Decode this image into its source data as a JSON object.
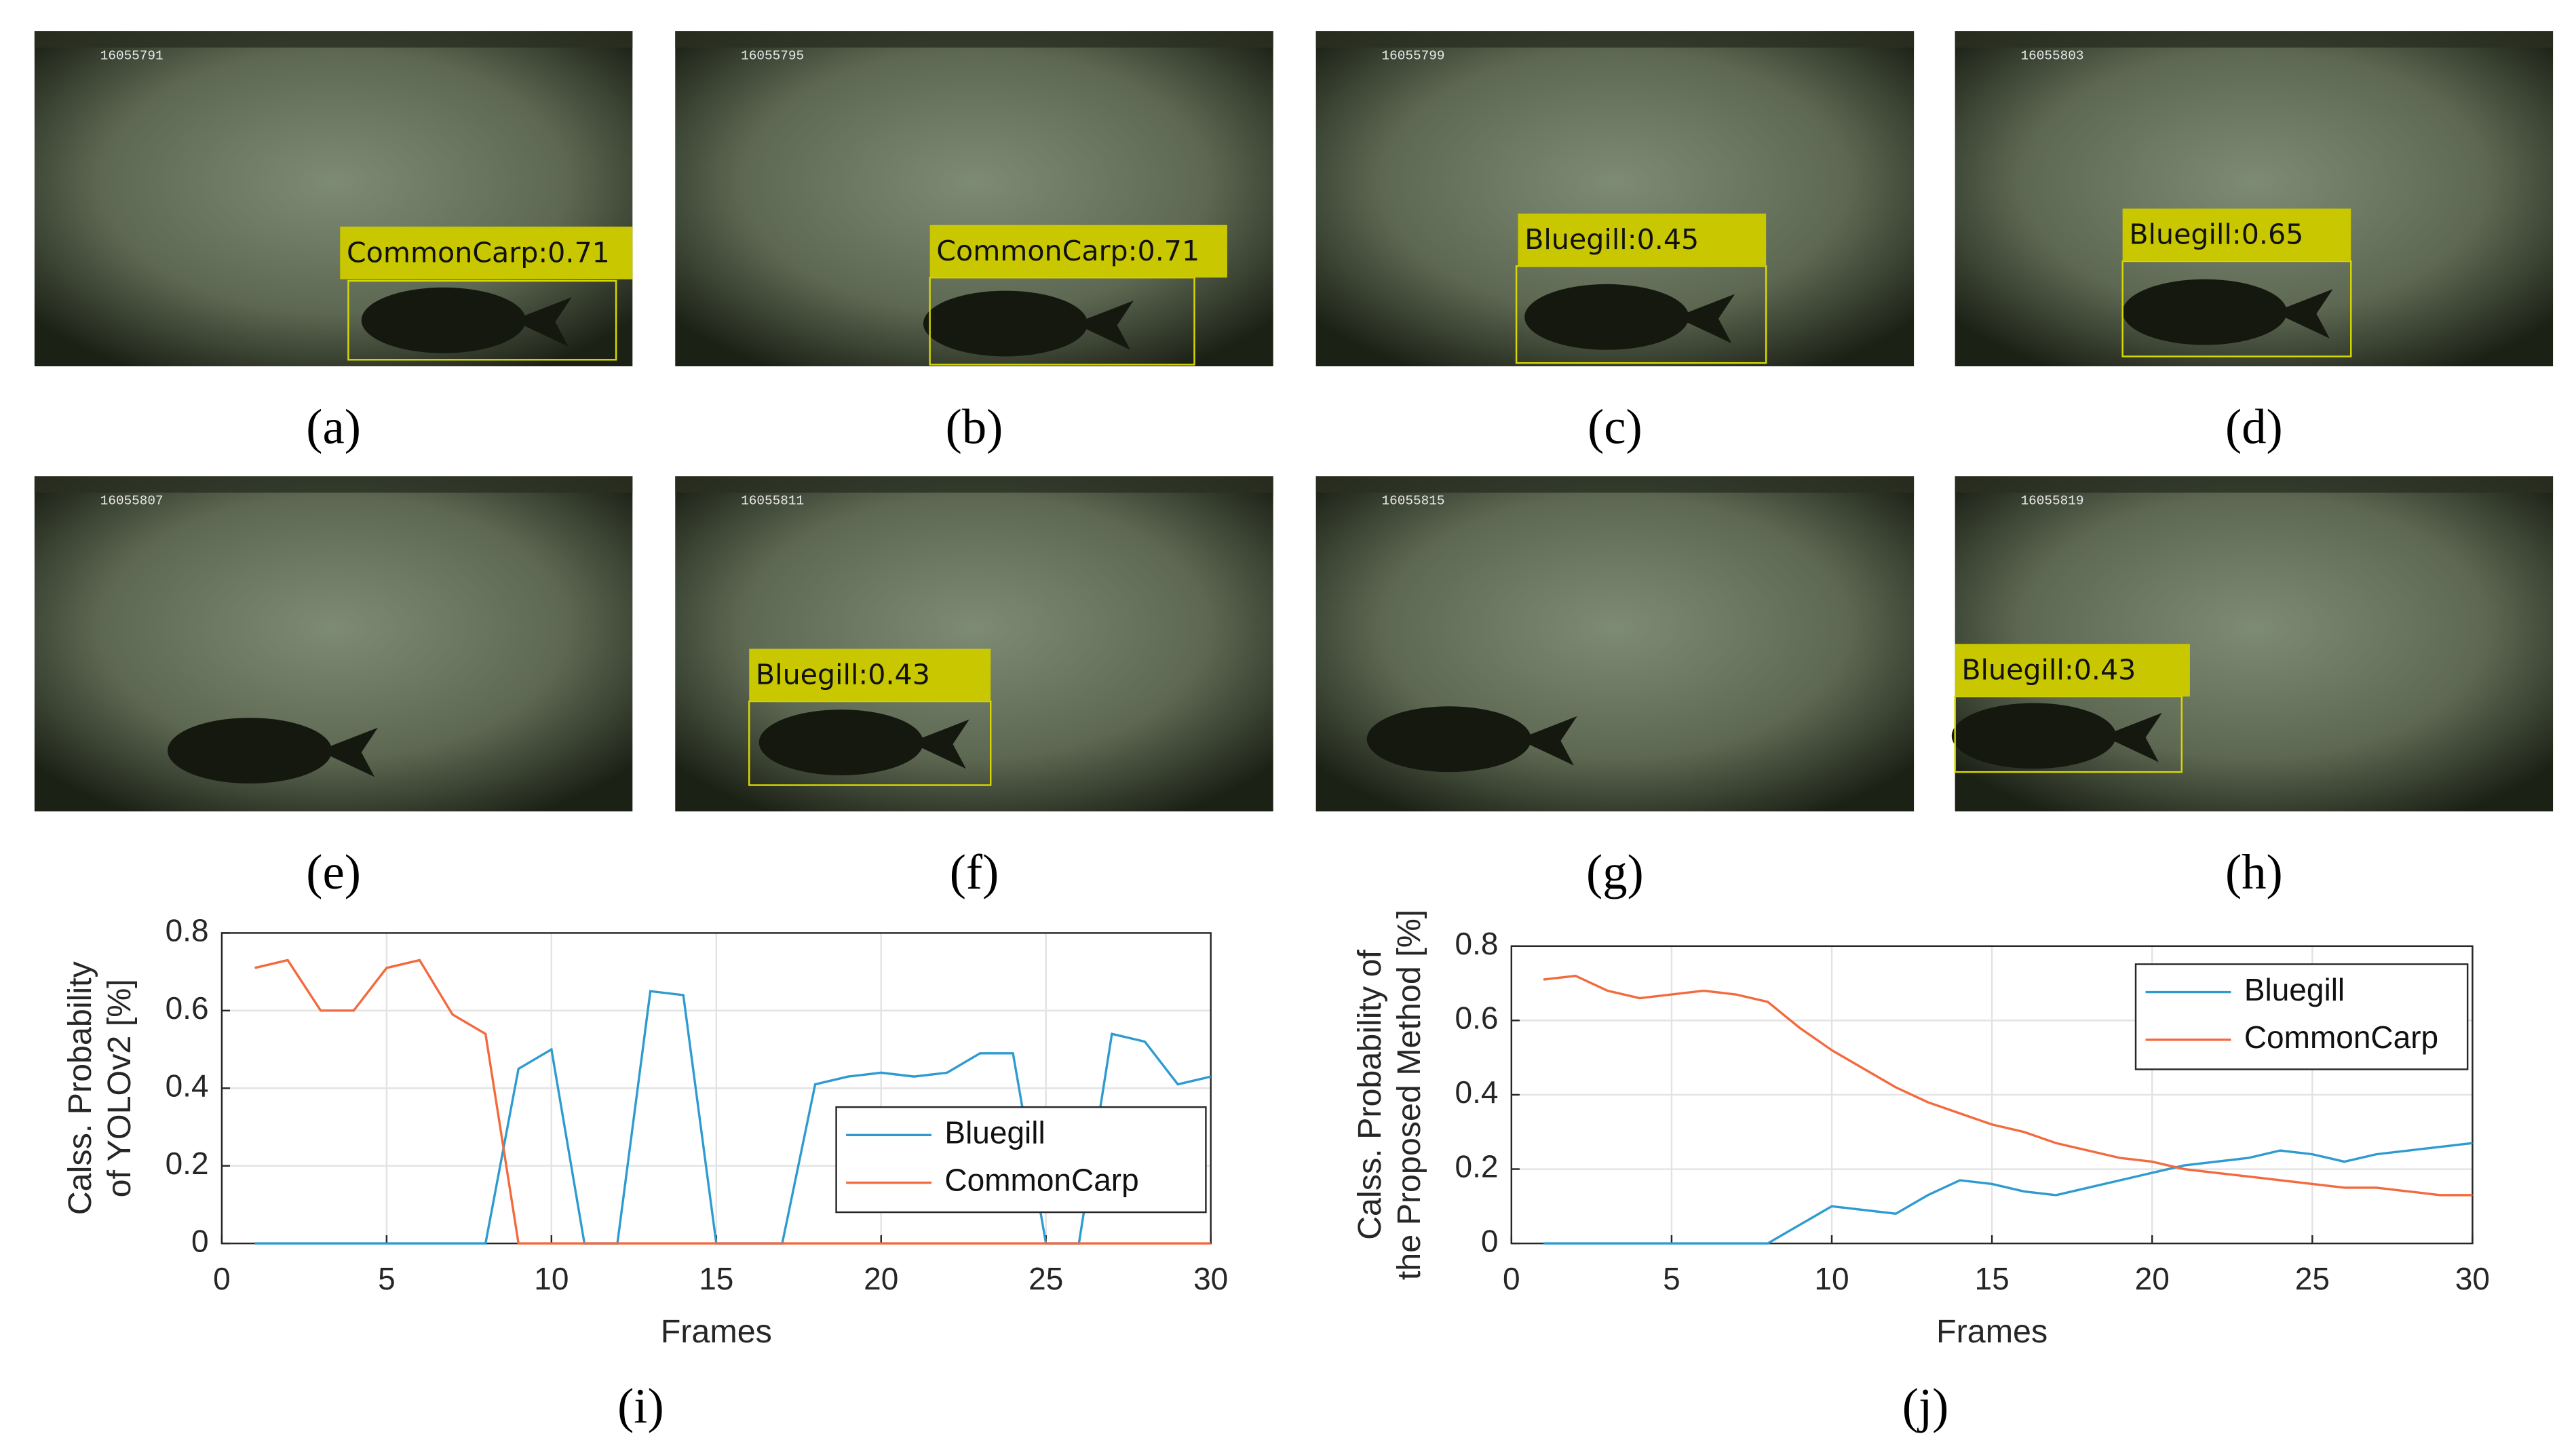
{
  "panels": [
    {
      "frame": "16055791",
      "detection": "CommonCarp:0.71",
      "caption": "(a)"
    },
    {
      "frame": "16055795",
      "detection": "CommonCarp:0.71",
      "caption": "(b)"
    },
    {
      "frame": "16055799",
      "detection": "Bluegill:0.45",
      "caption": "(c)"
    },
    {
      "frame": "16055803",
      "detection": "Bluegill:0.65",
      "caption": "(d)"
    },
    {
      "frame": "16055807",
      "caption": "(e)"
    },
    {
      "frame": "16055811",
      "detection": "Bluegill:0.43",
      "caption": "(f)"
    },
    {
      "frame": "16055815",
      "caption": "(g)"
    },
    {
      "frame": "16055819",
      "detection": "Bluegill:0.43",
      "caption": "(h)"
    }
  ],
  "chart_data": [
    {
      "type": "line",
      "caption": "(i)",
      "ylabel": [
        "Calss. Probability",
        "of YOLOv2 [%]"
      ],
      "xlabel": "Frames",
      "x": [
        1,
        2,
        3,
        4,
        5,
        6,
        7,
        8,
        9,
        10,
        11,
        12,
        13,
        14,
        15,
        16,
        17,
        18,
        19,
        20,
        21,
        22,
        23,
        24,
        25,
        26,
        27,
        28,
        29,
        30
      ],
      "series": [
        {
          "name": "Bluegill",
          "color": "#2e9bd0",
          "values": [
            0,
            0,
            0,
            0,
            0,
            0,
            0,
            0,
            0.45,
            0.5,
            0,
            0,
            0.65,
            0.64,
            0,
            0,
            0,
            0.41,
            0.43,
            0.44,
            0.43,
            0.44,
            0.49,
            0.49,
            0,
            0,
            0.54,
            0.52,
            0.41,
            0.43
          ]
        },
        {
          "name": "CommonCarp",
          "color": "#f26a3d",
          "values": [
            0.71,
            0.73,
            0.6,
            0.6,
            0.71,
            0.73,
            0.59,
            0.54,
            0,
            0,
            0,
            0,
            0,
            0,
            0,
            0,
            0,
            0,
            0,
            0,
            0,
            0,
            0,
            0,
            0,
            0,
            0,
            0,
            0,
            0
          ]
        }
      ],
      "xlim": [
        0,
        30
      ],
      "xticks": [
        0,
        5,
        10,
        15,
        20,
        25,
        30
      ],
      "ylim": [
        0,
        0.8
      ],
      "yticks": [
        0,
        0.2,
        0.4,
        0.6,
        0.8
      ],
      "grid": true,
      "legend": "lower right"
    },
    {
      "type": "line",
      "caption": "(j)",
      "ylabel": [
        "Calss. Probability of",
        "the Proposed Method [%]"
      ],
      "xlabel": "Frames",
      "x": [
        1,
        2,
        3,
        4,
        5,
        6,
        7,
        8,
        9,
        10,
        11,
        12,
        13,
        14,
        15,
        16,
        17,
        18,
        19,
        20,
        21,
        22,
        23,
        24,
        25,
        26,
        27,
        28,
        29,
        30
      ],
      "series": [
        {
          "name": "Bluegill",
          "color": "#2e9bd0",
          "values": [
            0,
            0,
            0,
            0,
            0,
            0,
            0,
            0,
            0.05,
            0.1,
            0.09,
            0.08,
            0.13,
            0.17,
            0.16,
            0.14,
            0.13,
            0.15,
            0.17,
            0.19,
            0.21,
            0.22,
            0.23,
            0.25,
            0.24,
            0.22,
            0.24,
            0.25,
            0.26,
            0.27
          ]
        },
        {
          "name": "CommonCarp",
          "color": "#f26a3d",
          "values": [
            0.71,
            0.72,
            0.68,
            0.66,
            0.67,
            0.68,
            0.67,
            0.65,
            0.58,
            0.52,
            0.47,
            0.42,
            0.38,
            0.35,
            0.32,
            0.3,
            0.27,
            0.25,
            0.23,
            0.22,
            0.2,
            0.19,
            0.18,
            0.17,
            0.16,
            0.15,
            0.15,
            0.14,
            0.13,
            0.13
          ]
        }
      ],
      "xlim": [
        0,
        30
      ],
      "xticks": [
        0,
        5,
        10,
        15,
        20,
        25,
        30
      ],
      "ylim": [
        0,
        0.8
      ],
      "yticks": [
        0,
        0.2,
        0.4,
        0.6,
        0.8
      ],
      "grid": true,
      "legend": "upper right"
    }
  ]
}
